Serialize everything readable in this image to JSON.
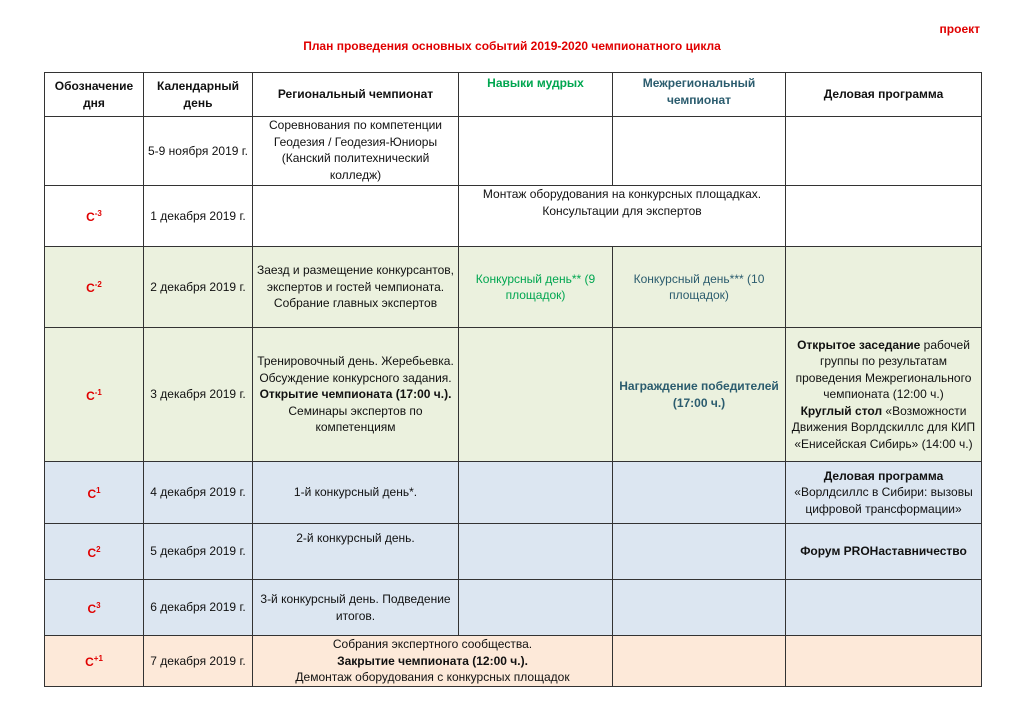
{
  "draft_label": "проект",
  "title": "План проведения основных событий 2019-2020 чемпионатного цикла",
  "headers": [
    "Обозначение дня",
    "Календарный день",
    "Региональный чемпионат",
    "Навыки мудрых",
    "Межрегиональный чемпионат",
    "Деловая программа"
  ],
  "colors": {
    "green_row": "#ebf1de",
    "blue_row": "#dce6f1",
    "peach_row": "#fde9d9",
    "red": "#e00000",
    "green_text": "#00a650",
    "teal_text": "#2b5c6e"
  },
  "rows": [
    {
      "date": "5-9 ноября 2019 г.",
      "regional": "Соревнования по компетенции Геодезия / Геодезия-Юниоры (Канский политехнический колледж)"
    },
    {
      "day": "С",
      "sup": "-3",
      "date": "1 декабря 2019 г.",
      "span": "Монтаж оборудования на конкурсных площадках. Консультации для экспертов"
    },
    {
      "day": "С",
      "sup": "-2",
      "date": "2 декабря 2019 г.",
      "regional": "Заезд и размещение конкурсантов, экспертов и гостей чемпионата. Собрание главных экспертов",
      "wise": "Конкурсный день** (9 площадок)",
      "interregional": "Конкурсный день*** (10 площадок)"
    },
    {
      "day": "С",
      "sup": "-1",
      "date": "3 декабря 2019 г.",
      "regional_a": "Тренировочный день. Жеребьевка. Обсуждение конкурсного задания.",
      "regional_b": "Открытие чемпионата (17:00 ч.).",
      "regional_c": "Семинары экспертов по компетенциям",
      "interregional": "Награждение победителей (17:00 ч.)",
      "business_a": "Открытое заседание",
      "business_b": " рабочей группы по результатам проведения Межрегионального чемпионата (12:00 ч.)",
      "business_c": "Круглый стол",
      "business_d": " «Возможности Движения Ворлдскиллс для КИП «Енисейская Сибирь» (14:00 ч.)"
    },
    {
      "day": "С",
      "sup": "1",
      "date": "4 декабря 2019 г.",
      "regional": "1-й конкурсный день*.",
      "business_a": "Деловая программа",
      "business_b": "«Ворлдсиллс в Сибири: вызовы цифровой трансформации»"
    },
    {
      "day": "С",
      "sup": "2",
      "date": "5 декабря 2019 г.",
      "regional": "2-й конкурсный день.",
      "business": "Форум PROНаставничество"
    },
    {
      "day": "С",
      "sup": "3",
      "date": "6 декабря 2019 г.",
      "regional": "3-й конкурсный день. Подведение итогов."
    },
    {
      "day": "С",
      "sup": "+1",
      "date": "7 декабря 2019 г.",
      "span_a": "Собрания экспертного сообщества.",
      "span_b": "Закрытие чемпионата (12:00 ч.).",
      "span_c": "Демонтаж оборудования с конкурсных площадок"
    }
  ]
}
